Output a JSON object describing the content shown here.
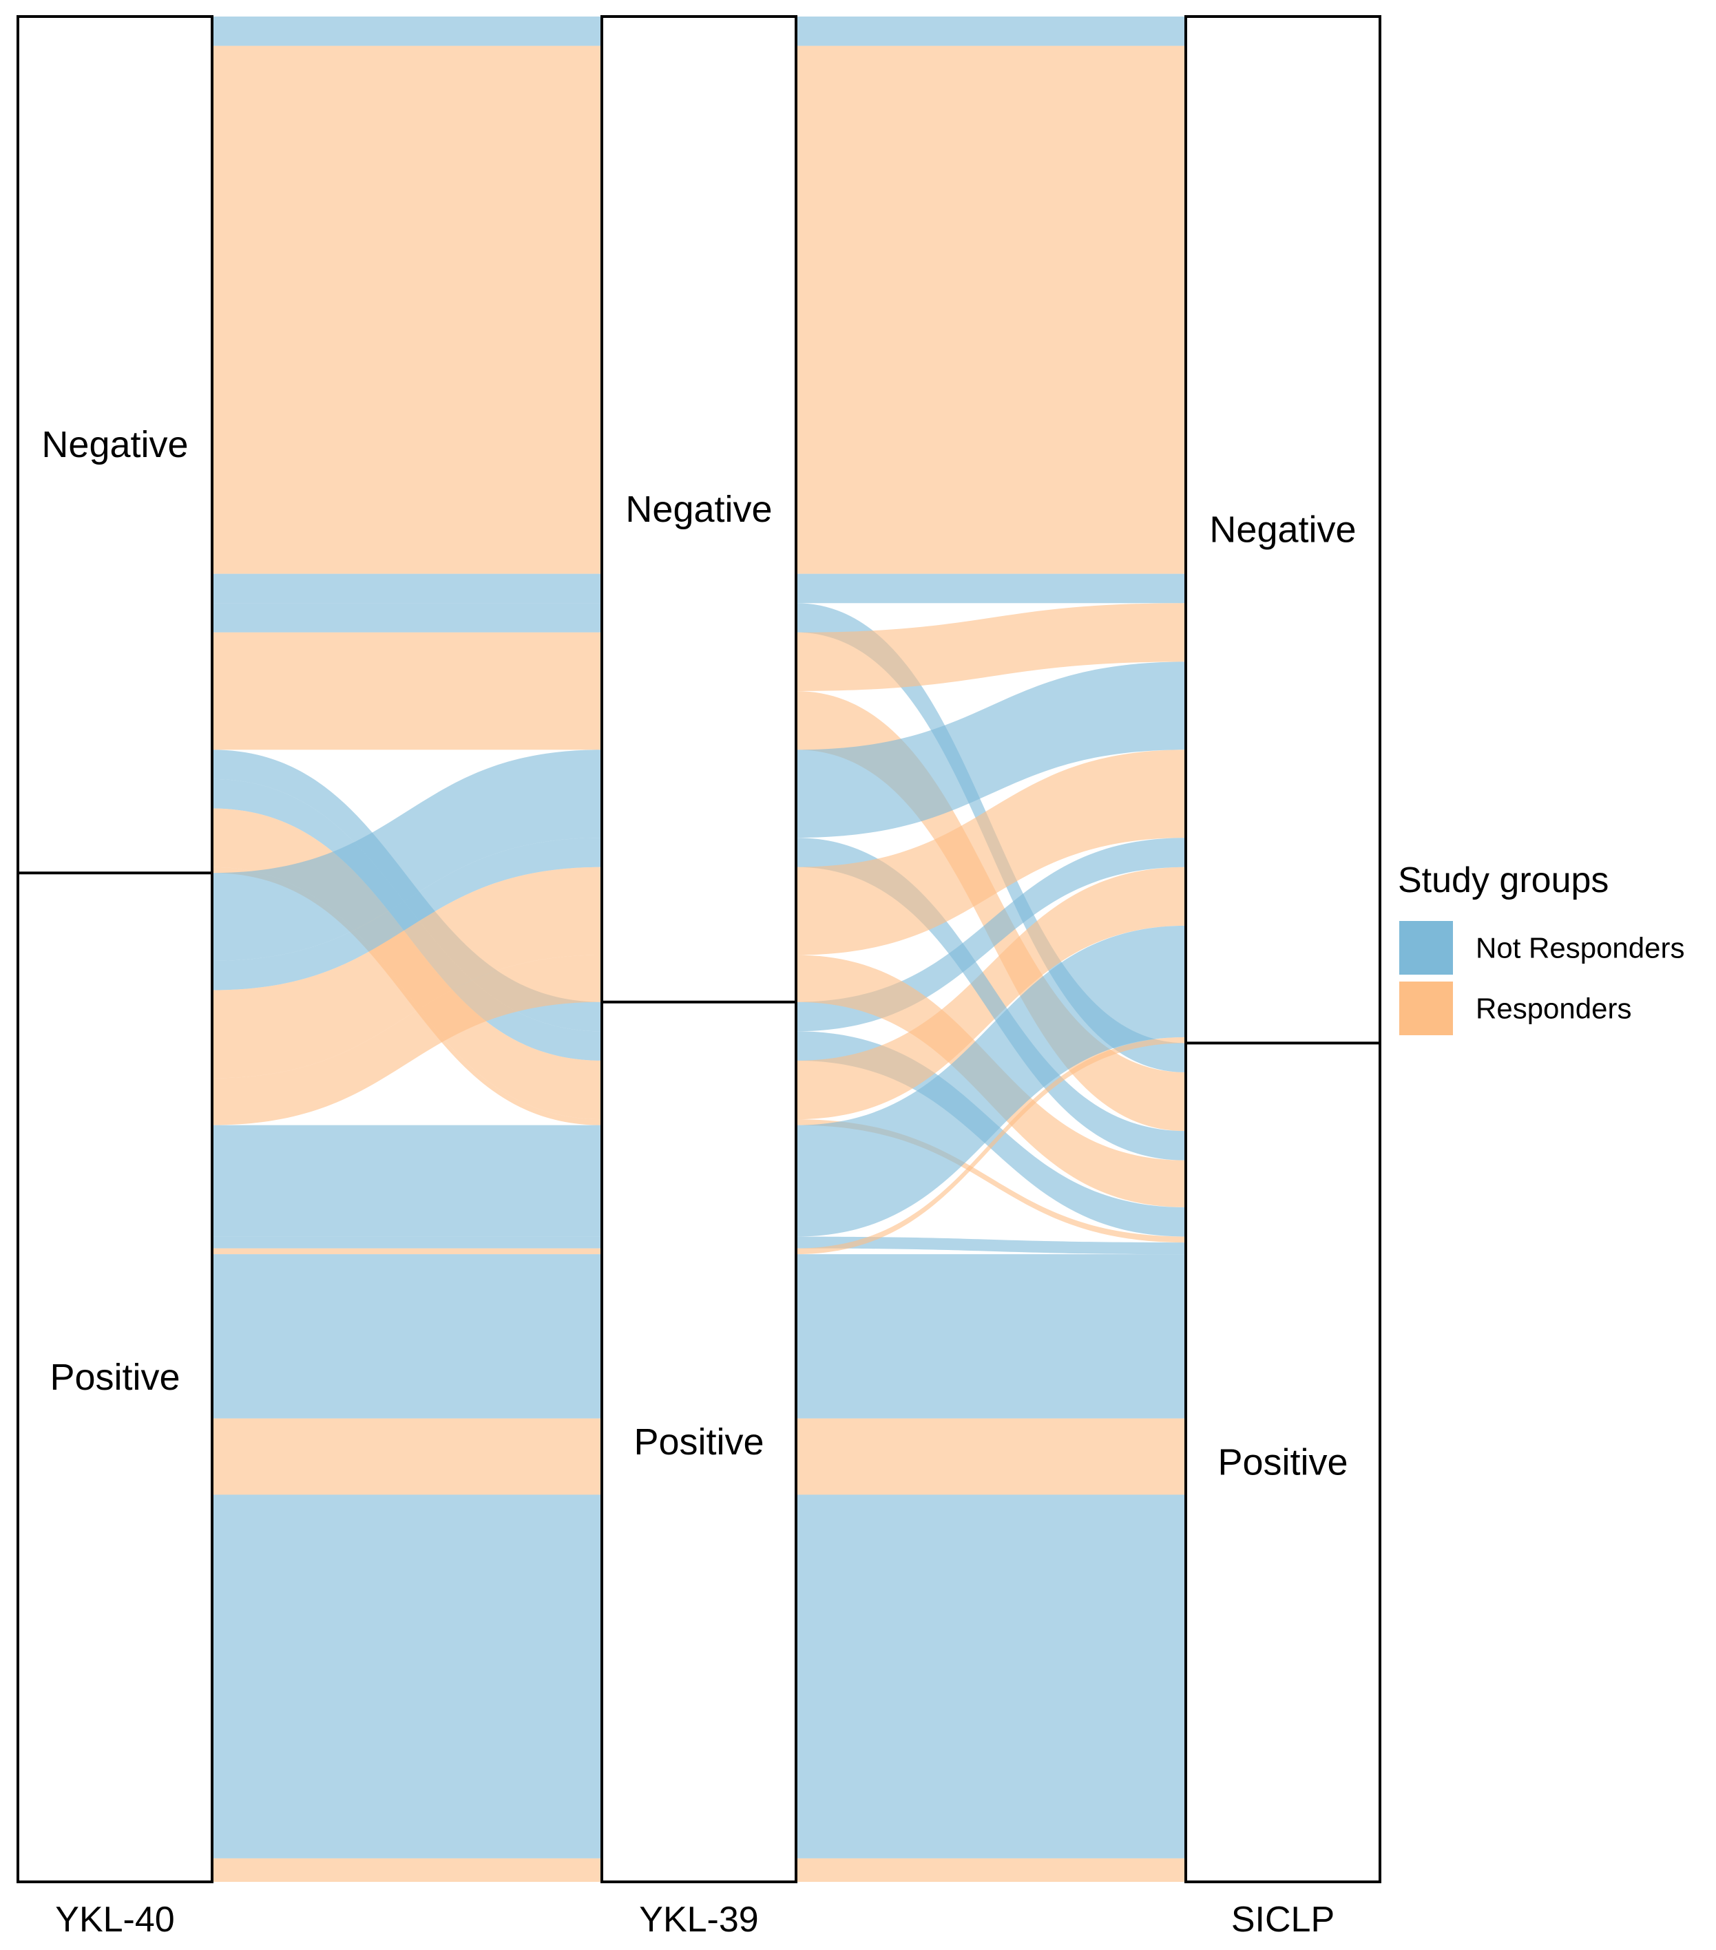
{
  "chart_data": {
    "type": "alluvial",
    "axes": [
      "YKL-40",
      "YKL-39",
      "SICLP"
    ],
    "strata_order": [
      "Negative",
      "Positive"
    ],
    "legend": {
      "title": "Study groups",
      "position": "right",
      "entries": [
        {
          "name": "Not Responders",
          "color": "#7db9d8"
        },
        {
          "name": "Responders",
          "color": "#fdbe85"
        }
      ]
    },
    "flow_opacity": 0.6,
    "flows": [
      {
        "path": [
          "Negative",
          "Negative",
          "Negative"
        ],
        "group": "Not Responders",
        "count": 1
      },
      {
        "path": [
          "Negative",
          "Negative",
          "Negative"
        ],
        "group": "Responders",
        "count": 18
      },
      {
        "path": [
          "Negative",
          "Negative",
          "Negative"
        ],
        "group": "Not Responders",
        "count": 1
      },
      {
        "path": [
          "Negative",
          "Negative",
          "Positive"
        ],
        "group": "Not Responders",
        "count": 1
      },
      {
        "path": [
          "Negative",
          "Negative",
          "Negative"
        ],
        "group": "Responders",
        "count": 2
      },
      {
        "path": [
          "Negative",
          "Negative",
          "Positive"
        ],
        "group": "Responders",
        "count": 2
      },
      {
        "path": [
          "Negative",
          "Positive",
          "Negative"
        ],
        "group": "Not Responders",
        "count": 1
      },
      {
        "path": [
          "Negative",
          "Positive",
          "Positive"
        ],
        "group": "Not Responders",
        "count": 1
      },
      {
        "path": [
          "Negative",
          "Positive",
          "Negative"
        ],
        "group": "Responders",
        "count": 2
      },
      {
        "path": [
          "Negative",
          "Positive",
          "Positive"
        ],
        "group": "Responders",
        "count": 0.2
      },
      {
        "path": [
          "Positive",
          "Negative",
          "Negative"
        ],
        "group": "Not Responders",
        "count": 3
      },
      {
        "path": [
          "Positive",
          "Negative",
          "Positive"
        ],
        "group": "Not Responders",
        "count": 1
      },
      {
        "path": [
          "Positive",
          "Negative",
          "Negative"
        ],
        "group": "Responders",
        "count": 3
      },
      {
        "path": [
          "Positive",
          "Negative",
          "Positive"
        ],
        "group": "Responders",
        "count": 1.6
      },
      {
        "path": [
          "Positive",
          "Positive",
          "Negative"
        ],
        "group": "Not Responders",
        "count": 3.8
      },
      {
        "path": [
          "Positive",
          "Positive",
          "Positive"
        ],
        "group": "Not Responders",
        "count": 0.4
      },
      {
        "path": [
          "Positive",
          "Positive",
          "Negative"
        ],
        "group": "Responders",
        "count": 0.2
      },
      {
        "path": [
          "Positive",
          "Positive",
          "Positive"
        ],
        "group": "Not Responders",
        "count": 5.6
      },
      {
        "path": [
          "Positive",
          "Positive",
          "Positive"
        ],
        "group": "Responders",
        "count": 2.6
      },
      {
        "path": [
          "Positive",
          "Positive",
          "Positive"
        ],
        "group": "Not Responders",
        "count": 12.4
      },
      {
        "path": [
          "Positive",
          "Positive",
          "Positive"
        ],
        "group": "Responders",
        "count": 0.8
      }
    ]
  }
}
